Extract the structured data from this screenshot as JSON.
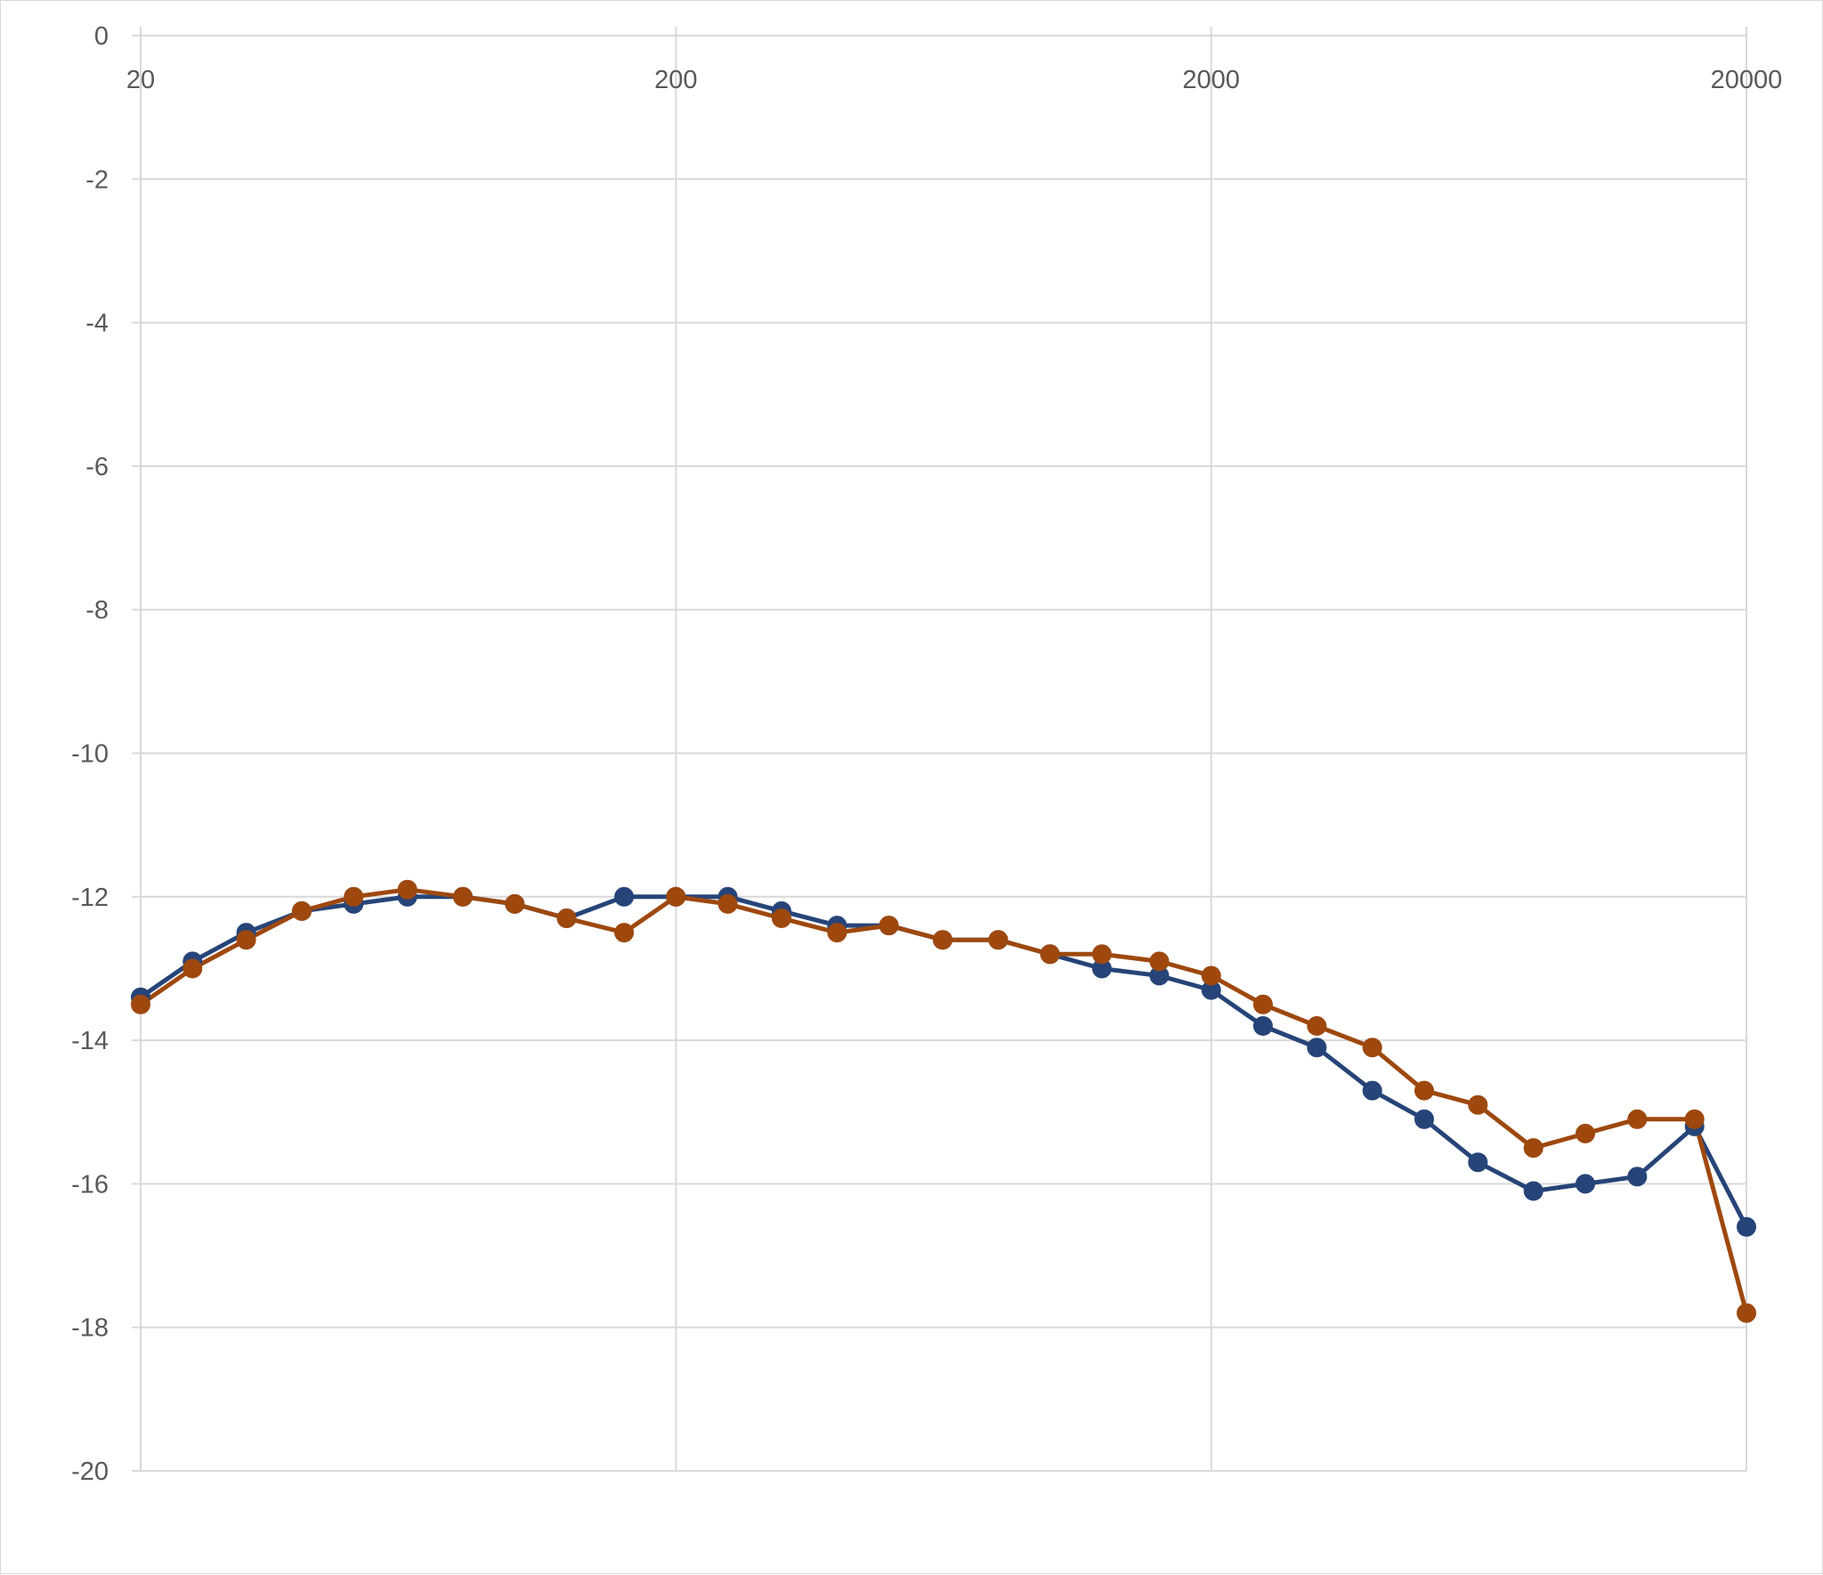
{
  "chart_data": {
    "type": "line",
    "title": "",
    "xlabel": "",
    "ylabel": "",
    "x_scale": "log",
    "xlim": [
      20,
      20000
    ],
    "ylim": [
      -20,
      0
    ],
    "x_ticks": [
      "20",
      "200",
      "2000",
      "20000"
    ],
    "y_ticks": [
      "0",
      "-2",
      "-4",
      "-6",
      "-8",
      "-10",
      "-12",
      "-14",
      "-16",
      "-18",
      "-20"
    ],
    "x_axis_position": "top",
    "grid": true,
    "legend": "none",
    "x": [
      20,
      25,
      31.5,
      40,
      50,
      63,
      80,
      100,
      125,
      160,
      200,
      250,
      315,
      400,
      500,
      630,
      800,
      1000,
      1250,
      1600,
      2000,
      2500,
      3150,
      4000,
      5000,
      6300,
      8000,
      10000,
      12500,
      16000,
      20000
    ],
    "series": [
      {
        "color": "#264478",
        "values": [
          -13.4,
          -12.9,
          -12.5,
          -12.2,
          -12.1,
          -12.0,
          -12.0,
          -12.1,
          -12.3,
          -12.0,
          -12.0,
          -12.0,
          -12.2,
          -12.4,
          -12.4,
          -12.6,
          -12.6,
          -12.8,
          -13.0,
          -13.1,
          -13.3,
          -13.8,
          -14.1,
          -14.7,
          -15.1,
          -15.7,
          -16.1,
          -16.0,
          -15.9,
          -15.2,
          -16.6
        ]
      },
      {
        "color": "#9E480E",
        "values": [
          -13.5,
          -13.0,
          -12.6,
          -12.2,
          -12.0,
          -11.9,
          -12.0,
          -12.1,
          -12.3,
          -12.5,
          -12.0,
          -12.1,
          -12.3,
          -12.5,
          -12.4,
          -12.6,
          -12.6,
          -12.8,
          -12.8,
          -12.9,
          -13.1,
          -13.5,
          -13.8,
          -14.1,
          -14.7,
          -14.9,
          -15.5,
          -15.3,
          -15.1,
          -15.1,
          -17.8
        ]
      }
    ]
  }
}
